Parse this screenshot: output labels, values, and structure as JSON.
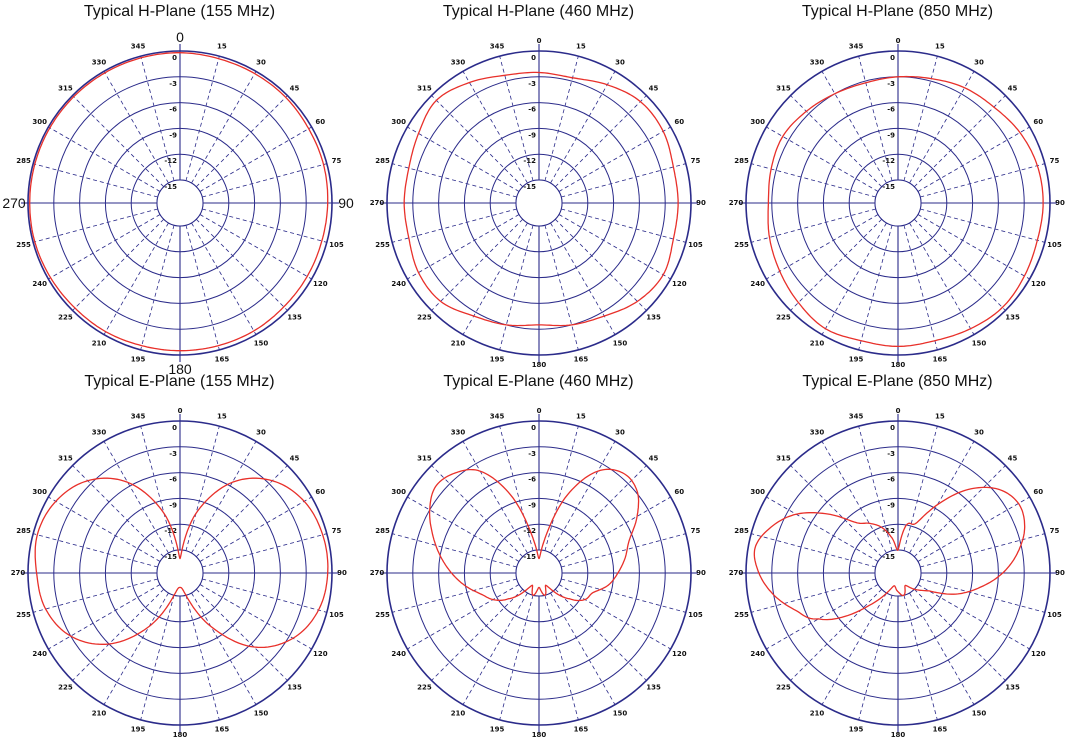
{
  "colors": {
    "grid": "#2b2b8a",
    "trace": "#e8302a",
    "text": "#111111"
  },
  "chart_data": [
    {
      "type": "polar-line",
      "title": "Typical H-Plane (155 MHz)",
      "radial_ticks": [
        "0",
        "-3",
        "-6",
        "-9",
        "-12",
        "-15"
      ],
      "angle_ticks": [
        "0",
        "15",
        "30",
        "45",
        "60",
        "75",
        "90",
        "105",
        "120",
        "135",
        "150",
        "165",
        "180",
        "195",
        "210",
        "225",
        "240",
        "255",
        "270",
        "285",
        "300",
        "315",
        "330",
        "345"
      ],
      "large_angle_labels": true,
      "series": [
        {
          "theta_deg": [
            0,
            15,
            30,
            45,
            60,
            75,
            90,
            105,
            120,
            135,
            150,
            165,
            180,
            195,
            210,
            225,
            240,
            255,
            270,
            285,
            300,
            315,
            330,
            345
          ],
          "gain_db": [
            -0.2,
            -0.3,
            -0.3,
            -0.3,
            -0.4,
            -0.4,
            -0.5,
            -0.6,
            -0.6,
            -0.6,
            -0.5,
            -0.5,
            -0.5,
            -0.5,
            -0.4,
            -0.4,
            -0.3,
            -0.2,
            -0.2,
            -0.2,
            -0.2,
            -0.2,
            -0.2,
            -0.2
          ]
        }
      ]
    },
    {
      "type": "polar-line",
      "title": "Typical H-Plane (460 MHz)",
      "radial_ticks": [
        "0",
        "-3",
        "-6",
        "-9",
        "-12",
        "-15"
      ],
      "angle_ticks": [
        "0",
        "15",
        "30",
        "45",
        "60",
        "75",
        "90",
        "105",
        "120",
        "135",
        "150",
        "165",
        "180",
        "195",
        "210",
        "225",
        "240",
        "255",
        "270",
        "285",
        "300",
        "315",
        "330",
        "345"
      ],
      "large_angle_labels": false,
      "series": [
        {
          "theta_deg": [
            0,
            15,
            30,
            45,
            60,
            75,
            90,
            105,
            120,
            135,
            150,
            165,
            180,
            195,
            210,
            225,
            240,
            255,
            270,
            285,
            300,
            315,
            330,
            345
          ],
          "gain_db": [
            -2.5,
            -2.6,
            -1.8,
            -1.0,
            -1.0,
            -1.5,
            -1.5,
            -1.5,
            -1.0,
            -1.5,
            -2.5,
            -3.0,
            -3.5,
            -3.0,
            -2.5,
            -1.5,
            -1.5,
            -2.0,
            -2.0,
            -2.0,
            -1.5,
            -0.8,
            -1.5,
            -2.3
          ]
        }
      ]
    },
    {
      "type": "polar-line",
      "title": "Typical H-Plane (850 MHz)",
      "radial_ticks": [
        "0",
        "-3",
        "-6",
        "-9",
        "-12",
        "-15"
      ],
      "angle_ticks": [
        "0",
        "15",
        "30",
        "45",
        "60",
        "75",
        "90",
        "105",
        "120",
        "135",
        "150",
        "165",
        "180",
        "195",
        "210",
        "225",
        "240",
        "255",
        "270",
        "285",
        "300",
        "315",
        "330",
        "345"
      ],
      "large_angle_labels": false,
      "series": [
        {
          "theta_deg": [
            0,
            15,
            30,
            45,
            60,
            75,
            90,
            105,
            120,
            135,
            150,
            165,
            180,
            195,
            210,
            225,
            240,
            255,
            270,
            285,
            300,
            315,
            330,
            345
          ],
          "gain_db": [
            -3.0,
            -2.7,
            -2.2,
            -1.9,
            -1.3,
            -0.9,
            -0.8,
            -0.9,
            -0.7,
            -0.5,
            -0.8,
            -1.1,
            -1.0,
            -1.1,
            -0.8,
            -1.3,
            -1.8,
            -2.2,
            -2.6,
            -2.4,
            -2.2,
            -2.6,
            -3.0,
            -3.2
          ]
        }
      ]
    },
    {
      "type": "polar-line",
      "title": "Typical E-Plane (155 MHz)",
      "radial_ticks": [
        "0",
        "-3",
        "-6",
        "-9",
        "-12",
        "-15"
      ],
      "angle_ticks": [
        "0",
        "15",
        "30",
        "45",
        "60",
        "75",
        "90",
        "105",
        "120",
        "135",
        "150",
        "165",
        "180",
        "195",
        "210",
        "225",
        "240",
        "255",
        "270",
        "285",
        "300",
        "315",
        "330",
        "345"
      ],
      "large_angle_labels": false,
      "series": [
        {
          "theta_deg": [
            0,
            15,
            30,
            45,
            60,
            75,
            90,
            105,
            120,
            135,
            150,
            165,
            180,
            195,
            210,
            225,
            240,
            255,
            270,
            285,
            300,
            315,
            330,
            345
          ],
          "gain_db": [
            -16,
            -10.5,
            -5.5,
            -2.5,
            -1.0,
            -0.5,
            -0.5,
            -1.0,
            -2.5,
            -5.5,
            -10.5,
            -15.0,
            -16,
            -15.0,
            -10.5,
            -6.0,
            -3.0,
            -1.5,
            -1.0,
            -0.5,
            -1.0,
            -2.5,
            -5.5,
            -10.5
          ]
        }
      ]
    },
    {
      "type": "polar-line",
      "title": "Typical E-Plane (460 MHz)",
      "radial_ticks": [
        "0",
        "-3",
        "-6",
        "-9",
        "-12",
        "-15"
      ],
      "angle_ticks": [
        "0",
        "15",
        "30",
        "45",
        "60",
        "75",
        "90",
        "105",
        "120",
        "135",
        "150",
        "165",
        "180",
        "195",
        "210",
        "225",
        "240",
        "255",
        "270",
        "285",
        "300",
        "315",
        "330",
        "345"
      ],
      "large_angle_labels": false,
      "series": [
        {
          "theta_deg": [
            0,
            10,
            20,
            30,
            40,
            50,
            60,
            70,
            80,
            90,
            100,
            110,
            120,
            130,
            150,
            165,
            180,
            195,
            210,
            230,
            240,
            250,
            260,
            270,
            280,
            290,
            300,
            310,
            320,
            330,
            340,
            350
          ],
          "gain_db": [
            -16,
            -13.5,
            -8,
            -4,
            -2.5,
            -2.8,
            -4.5,
            -6.5,
            -7.5,
            -8.5,
            -9.5,
            -11,
            -11.5,
            -13,
            -16,
            -15,
            -16,
            -15,
            -16,
            -13,
            -11.5,
            -10.5,
            -9,
            -7.5,
            -6,
            -4.5,
            -3,
            -2,
            -2.5,
            -4,
            -8,
            -13.5
          ]
        }
      ]
    },
    {
      "type": "polar-line",
      "title": "Typical E-Plane (850 MHz)",
      "radial_ticks": [
        "0",
        "-3",
        "-6",
        "-9",
        "-12",
        "-15"
      ],
      "angle_ticks": [
        "0",
        "15",
        "30",
        "45",
        "60",
        "75",
        "90",
        "105",
        "120",
        "135",
        "150",
        "165",
        "180",
        "195",
        "210",
        "225",
        "240",
        "255",
        "270",
        "285",
        "300",
        "315",
        "330",
        "345"
      ],
      "large_angle_labels": false,
      "series": [
        {
          "theta_deg": [
            0,
            10,
            20,
            30,
            40,
            50,
            60,
            70,
            80,
            90,
            100,
            110,
            120,
            135,
            150,
            165,
            180,
            200,
            220,
            240,
            250,
            260,
            270,
            280,
            290,
            300,
            310,
            320,
            330,
            340,
            350
          ],
          "gain_db": [
            -15,
            -12,
            -11.5,
            -8.5,
            -5,
            -2.5,
            -1.5,
            -2,
            -3.5,
            -5.5,
            -8,
            -10.5,
            -13.5,
            -15,
            -16,
            -15,
            -15.5,
            -16,
            -13,
            -7,
            -5,
            -3,
            -1.5,
            -0.8,
            -2,
            -4,
            -7,
            -10,
            -11,
            -12,
            -13.5
          ]
        }
      ]
    }
  ]
}
